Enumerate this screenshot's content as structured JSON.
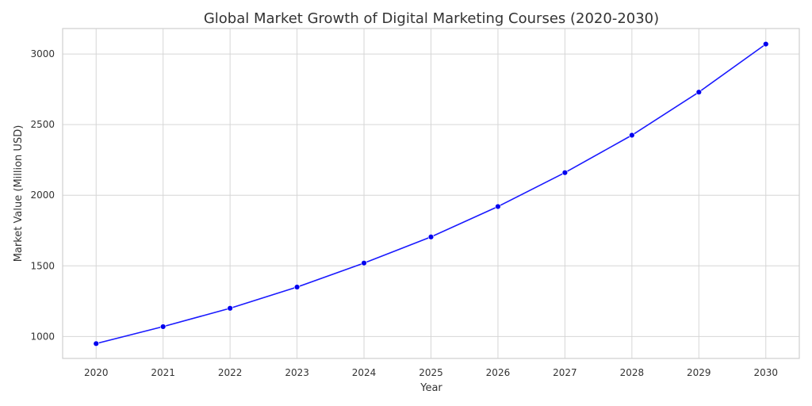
{
  "chart_data": {
    "type": "line",
    "title": "Global Market Growth of Digital Marketing Courses (2020-2030)",
    "xlabel": "Year",
    "ylabel": "Market Value (Million USD)",
    "x": [
      2020,
      2021,
      2022,
      2023,
      2024,
      2025,
      2026,
      2027,
      2028,
      2029,
      2030
    ],
    "x_tick_labels": [
      "2020",
      "2021",
      "2022",
      "2023",
      "2024",
      "2025",
      "2026",
      "2027",
      "2028",
      "2029",
      "2030"
    ],
    "series": [
      {
        "values": [
          950,
          1070,
          1200,
          1350,
          1520,
          1705,
          1920,
          2160,
          2425,
          2730,
          3070
        ],
        "color": "#1a1aff",
        "marker_color": "#0000ee",
        "marker": "circle"
      }
    ],
    "xlim": [
      2019.5,
      2030.5
    ],
    "ylim": [
      845,
      3180
    ],
    "y_ticks": [
      1000,
      1500,
      2000,
      2500,
      3000
    ],
    "y_tick_labels": [
      "1000",
      "1500",
      "2000",
      "2500",
      "3000"
    ],
    "grid": true,
    "colors": {
      "grid": "#d6d6d6",
      "frame": "#cfcfcf",
      "text": "#333333"
    }
  }
}
